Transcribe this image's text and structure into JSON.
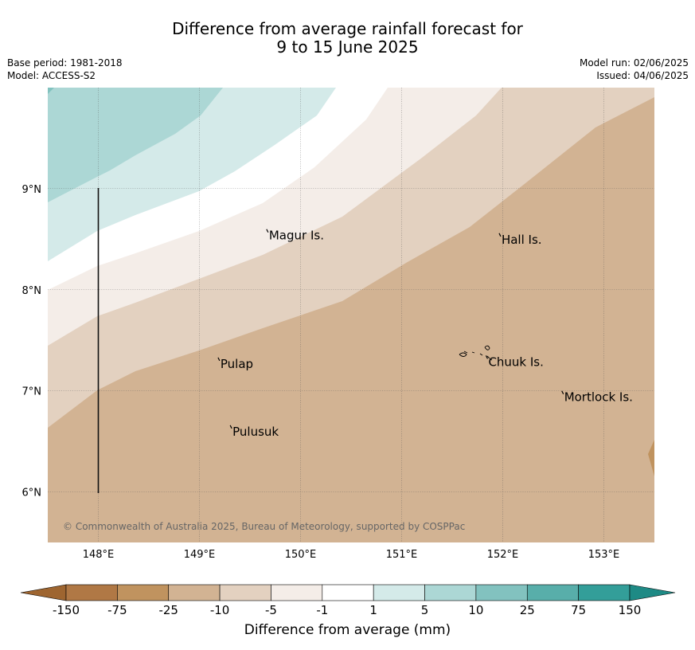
{
  "title": {
    "line1": "Difference from average rainfall forecast for",
    "line2": "9 to 15 June 2025"
  },
  "meta": {
    "base_period": "Base period: 1981-2018",
    "model": "Model: ACCESS-S2",
    "model_run": "Model run: 02/06/2025",
    "issued": "Issued: 04/06/2025"
  },
  "map": {
    "lon_range": [
      147.5,
      153.5
    ],
    "lat_range": [
      5.5,
      10.0
    ],
    "lon_ticks": [
      "148°E",
      "149°E",
      "150°E",
      "151°E",
      "152°E",
      "153°E"
    ],
    "lat_ticks": [
      "9°N",
      "8°N",
      "7°N",
      "6°N"
    ],
    "places": [
      {
        "name": "Magur Is.",
        "lon": 149.68,
        "lat": 8.56
      },
      {
        "name": "Hall Is.",
        "lon": 151.98,
        "lat": 8.52
      },
      {
        "name": "Pulap",
        "lon": 149.2,
        "lat": 7.29
      },
      {
        "name": "Chuuk Is.",
        "lon": 151.85,
        "lat": 7.31
      },
      {
        "name": "Mortlock Is.",
        "lon": 152.6,
        "lat": 6.96
      },
      {
        "name": "Pulusuk",
        "lon": 149.32,
        "lat": 6.62
      }
    ],
    "copyright": "© Commonwealth of Australia 2025, Bureau of Meteorology, supported by COSPPac"
  },
  "colorbar": {
    "title": "Difference from average (mm)",
    "tick_labels": [
      "-150",
      "-75",
      "-25",
      "-10",
      "-5",
      "-1",
      "1",
      "5",
      "10",
      "25",
      "75",
      "150"
    ],
    "colors": [
      "#9e6530",
      "#b07845",
      "#c0935f",
      "#d2b393",
      "#e3d1c0",
      "#f4ede8",
      "#ffffff",
      "#d4eae9",
      "#acd7d5",
      "#82c2bf",
      "#58aeaa",
      "#339e99",
      "#1e8a85"
    ]
  }
}
